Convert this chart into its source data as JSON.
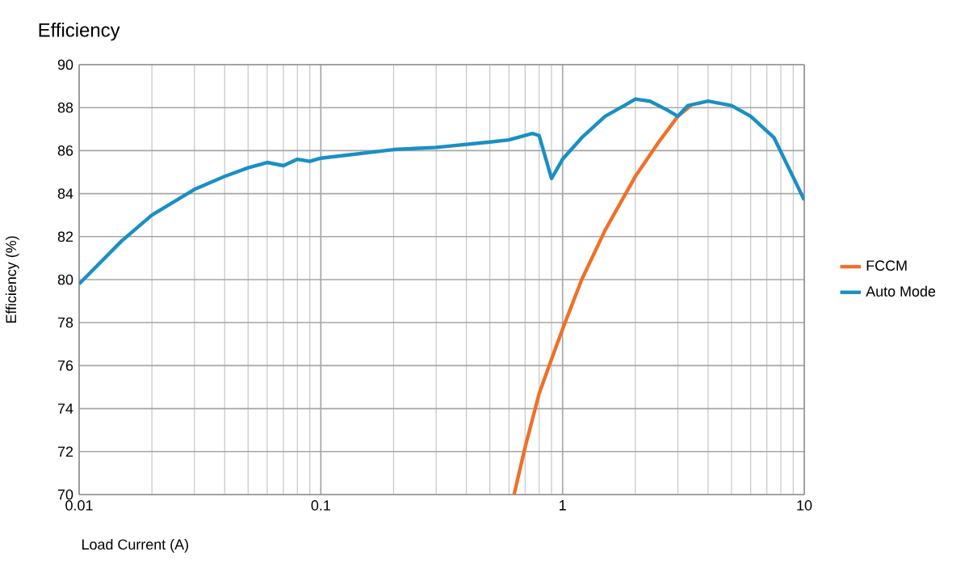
{
  "chart_data": {
    "type": "line",
    "title": "Efficiency",
    "xlabel": "Load Current (A)",
    "ylabel": "Efficiency (%)",
    "log": "x",
    "xlim": [
      0.01,
      10
    ],
    "xticks": [
      0.01,
      0.1,
      1,
      10
    ],
    "ylim": [
      70,
      90
    ],
    "yticks": [
      70,
      72,
      74,
      76,
      78,
      80,
      82,
      84,
      86,
      88,
      90
    ],
    "grid": true,
    "legend": "right",
    "marker": "none",
    "line_style": "solid",
    "series": [
      {
        "name": "FCCM",
        "color": "#f07028",
        "x": [
          0.63,
          0.7,
          0.8,
          0.9,
          1.0,
          1.2,
          1.5,
          2.0,
          2.5,
          3.0,
          3.4
        ],
        "values": [
          70,
          72.2,
          74.7,
          76.3,
          77.7,
          80.0,
          82.3,
          84.8,
          86.4,
          87.6,
          88.1
        ]
      },
      {
        "name": "Auto Mode",
        "color": "#1a8fc4",
        "x": [
          0.01,
          0.015,
          0.02,
          0.03,
          0.04,
          0.05,
          0.06,
          0.07,
          0.08,
          0.09,
          0.1,
          0.2,
          0.3,
          0.5,
          0.6,
          0.75,
          0.8,
          0.9,
          1.0,
          1.2,
          1.5,
          1.8,
          2.0,
          2.3,
          2.7,
          3.0,
          3.3,
          4.0,
          5.0,
          6.0,
          7.5,
          10
        ],
        "values": [
          79.8,
          81.8,
          83.0,
          84.2,
          84.8,
          85.2,
          85.45,
          85.3,
          85.6,
          85.5,
          85.65,
          86.05,
          86.15,
          86.4,
          86.5,
          86.8,
          86.7,
          84.7,
          85.6,
          86.6,
          87.6,
          88.1,
          88.4,
          88.3,
          87.9,
          87.6,
          88.1,
          88.3,
          88.1,
          87.6,
          86.6,
          83.7
        ]
      }
    ]
  }
}
